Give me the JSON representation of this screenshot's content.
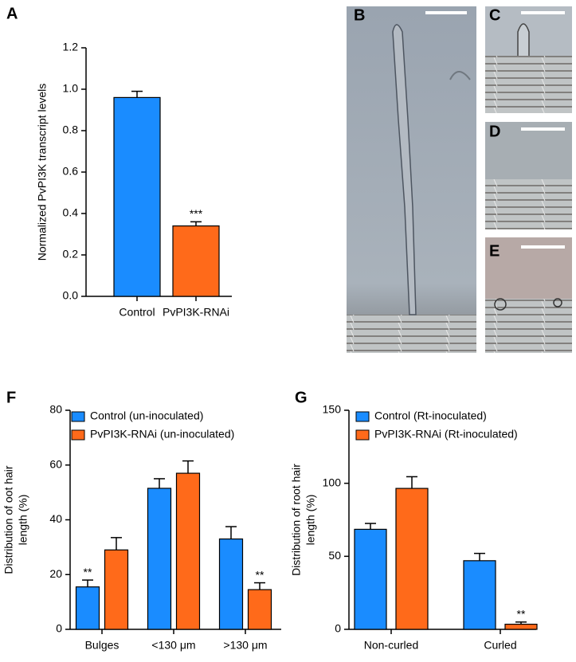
{
  "chart_data": [
    {
      "type": "bar",
      "panel": "A",
      "ylabel": [
        "Normalized PvPI3K transcript levels"
      ],
      "categories": [
        "Control",
        "PvPI3K-RNAi"
      ],
      "values": [
        0.96,
        0.34
      ],
      "errors": [
        0.03,
        0.02
      ],
      "colors": [
        "#1a8cff",
        "#ff6a1a"
      ],
      "annotations": [
        null,
        "***"
      ],
      "ylim": [
        0,
        1.2
      ],
      "yticks": [
        {
          "value": 0,
          "label": "0.0"
        },
        {
          "value": 0.2,
          "label": "0.2"
        },
        {
          "value": 0.4,
          "label": "0.4"
        },
        {
          "value": 0.6,
          "label": "0.6"
        },
        {
          "value": 0.8,
          "label": "0.8"
        },
        {
          "value": 1,
          "label": "1.0"
        },
        {
          "value": 1.2,
          "label": "1.2"
        }
      ]
    },
    {
      "type": "grouped-bar",
      "panel": "F",
      "ylabel": [
        "Distribution of oot hair",
        "length (%)"
      ],
      "categories": [
        "Bulges",
        "<130 μm",
        ">130 μm"
      ],
      "series": [
        {
          "name": "Control (un-inoculated)",
          "color": "#1a8cff",
          "values": [
            15.5,
            51.5,
            33
          ],
          "errors": [
            2.5,
            3.5,
            4.5
          ],
          "annotations": [
            "**",
            null,
            null
          ]
        },
        {
          "name": "PvPI3K-RNAi (un-inoculated)",
          "color": "#ff6a1a",
          "values": [
            29,
            57,
            14.5
          ],
          "errors": [
            4.5,
            4.5,
            2.5
          ],
          "annotations": [
            null,
            null,
            "**"
          ]
        }
      ],
      "ylim": [
        0,
        80
      ],
      "yticks": [
        0,
        20,
        40,
        60,
        80
      ]
    },
    {
      "type": "grouped-bar",
      "panel": "G",
      "ylabel": [
        "Distribution of root hair",
        "length (%)"
      ],
      "categories": [
        "Non-curled",
        "Curled"
      ],
      "series": [
        {
          "name": "Control (Rt-inoculated)",
          "color": "#1a8cff",
          "values": [
            68.5,
            47
          ],
          "errors": [
            4,
            5
          ],
          "annotations": [
            null,
            null
          ]
        },
        {
          "name": "PvPI3K-RNAi (Rt-inoculated)",
          "color": "#ff6a1a",
          "values": [
            96.5,
            3.5
          ],
          "errors": [
            8,
            1.5
          ],
          "annotations": [
            null,
            "**"
          ]
        }
      ],
      "ylim": [
        0,
        150
      ],
      "yticks": [
        0,
        50,
        100,
        150
      ]
    }
  ],
  "micrographs": [
    {
      "panel": "B"
    },
    {
      "panel": "C"
    },
    {
      "panel": "D"
    },
    {
      "panel": "E"
    }
  ]
}
